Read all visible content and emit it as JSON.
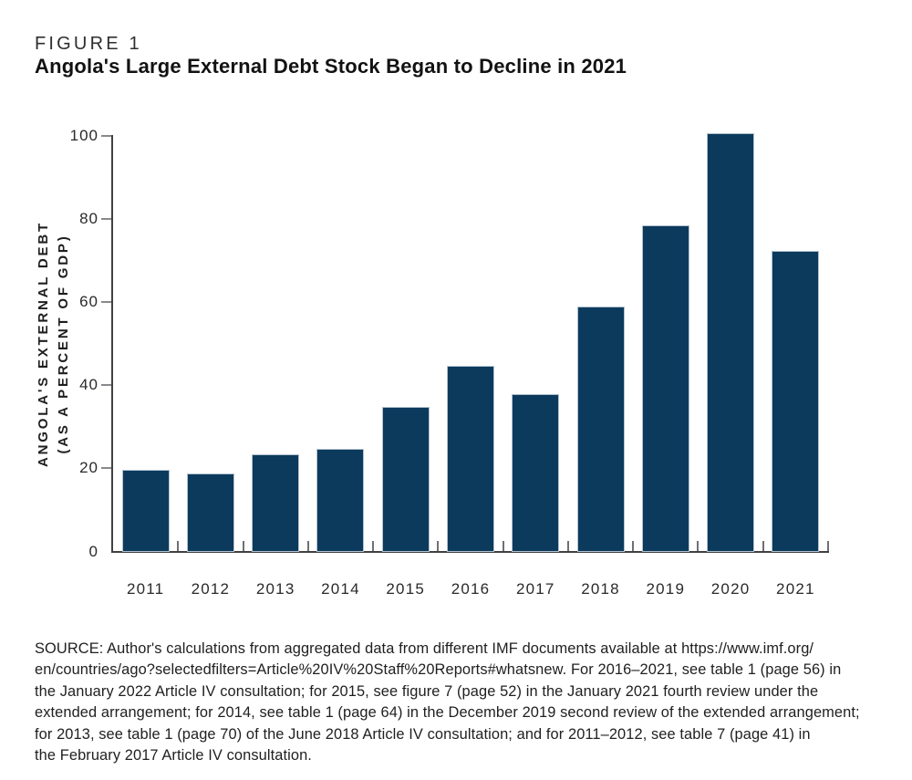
{
  "header": {
    "figure_label": "FIGURE 1",
    "title": "Angola's Large External Debt Stock Began to Decline in 2021"
  },
  "chart_data": {
    "type": "bar",
    "title": "Angola's Large External Debt Stock Began to Decline in 2021",
    "categories": [
      "2011",
      "2012",
      "2013",
      "2014",
      "2015",
      "2016",
      "2017",
      "2018",
      "2019",
      "2020",
      "2021"
    ],
    "values": [
      19.8,
      18.9,
      23.6,
      25.0,
      35.0,
      45.0,
      38.1,
      59.2,
      78.8,
      100.9,
      72.5
    ],
    "xlabel": "",
    "ylabel": "ANGOLA'S EXTERNAL DEBT (AS A PERCENT OF GDP)",
    "ylabel_lines": [
      "ANGOLA'S EXTERNAL DEBT",
      "(AS A PERCENT OF GDP)"
    ],
    "yticks": [
      0,
      20,
      40,
      60,
      80,
      100
    ],
    "ylim": [
      0,
      100
    ],
    "grid": false,
    "legend": "none",
    "bar_color": "#0c3a5d",
    "bar_edge_color": "#b3c2ce",
    "axis_color": "#414042",
    "tick_color": "#6e7072"
  },
  "source": {
    "lines": [
      "SOURCE: Author's calculations from aggregated data from different IMF documents available at https://www.imf.org/",
      "en/countries/ago?selectedfilters=Article%20IV%20Staff%20Reports#whatsnew. For 2016–2021, see table 1 (page 56) in",
      "the January 2022 Article IV consultation; for 2015, see figure 7 (page 52) in the January 2021 fourth review under the",
      "extended arrangement; for 2014, see table 1 (page 64) in the December 2019 second review of the extended arrangement;",
      "for 2013, see table 1 (page 70) of the June 2018 Article IV consultation; and for 2011–2012, see table 7 (page 41) in",
      "the February 2017 Article IV consultation."
    ]
  }
}
